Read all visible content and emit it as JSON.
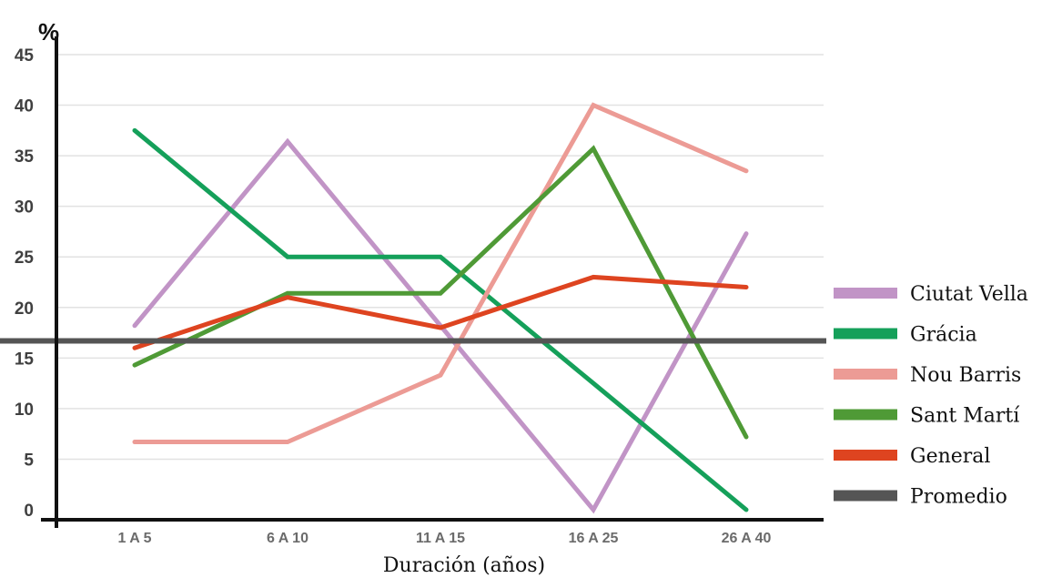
{
  "chart_data": {
    "type": "line",
    "title": "",
    "xlabel": "Duración (años)",
    "ylabel": "%",
    "ylim": [
      0,
      45
    ],
    "yticks": [
      0,
      5,
      10,
      15,
      20,
      25,
      30,
      35,
      40,
      45
    ],
    "grid": "horizontal",
    "legend": "right",
    "categories": [
      "1 A 5",
      "6 A 10",
      "11 A 15",
      "16  A 25",
      "26 A 40"
    ],
    "series": [
      {
        "name": "Ciutat Vella",
        "color": "#c194c6",
        "values": [
          18.2,
          36.4,
          18.2,
          0,
          27.3
        ]
      },
      {
        "name": "Grácia",
        "color": "#15a05a",
        "values": [
          37.5,
          25,
          25,
          12.5,
          0
        ]
      },
      {
        "name": "Nou Barris",
        "color": "#ec9b95",
        "values": [
          6.7,
          6.7,
          13.3,
          40,
          33.5
        ]
      },
      {
        "name": "Sant Martí",
        "color": "#4f9a36",
        "values": [
          14.3,
          21.4,
          21.4,
          35.7,
          7.2
        ]
      },
      {
        "name": "General",
        "color": "#de4420",
        "values": [
          16,
          21,
          18,
          23,
          22
        ]
      }
    ],
    "reference_line": {
      "name": "Promedio",
      "color": "#555555",
      "value": 16.7
    }
  }
}
